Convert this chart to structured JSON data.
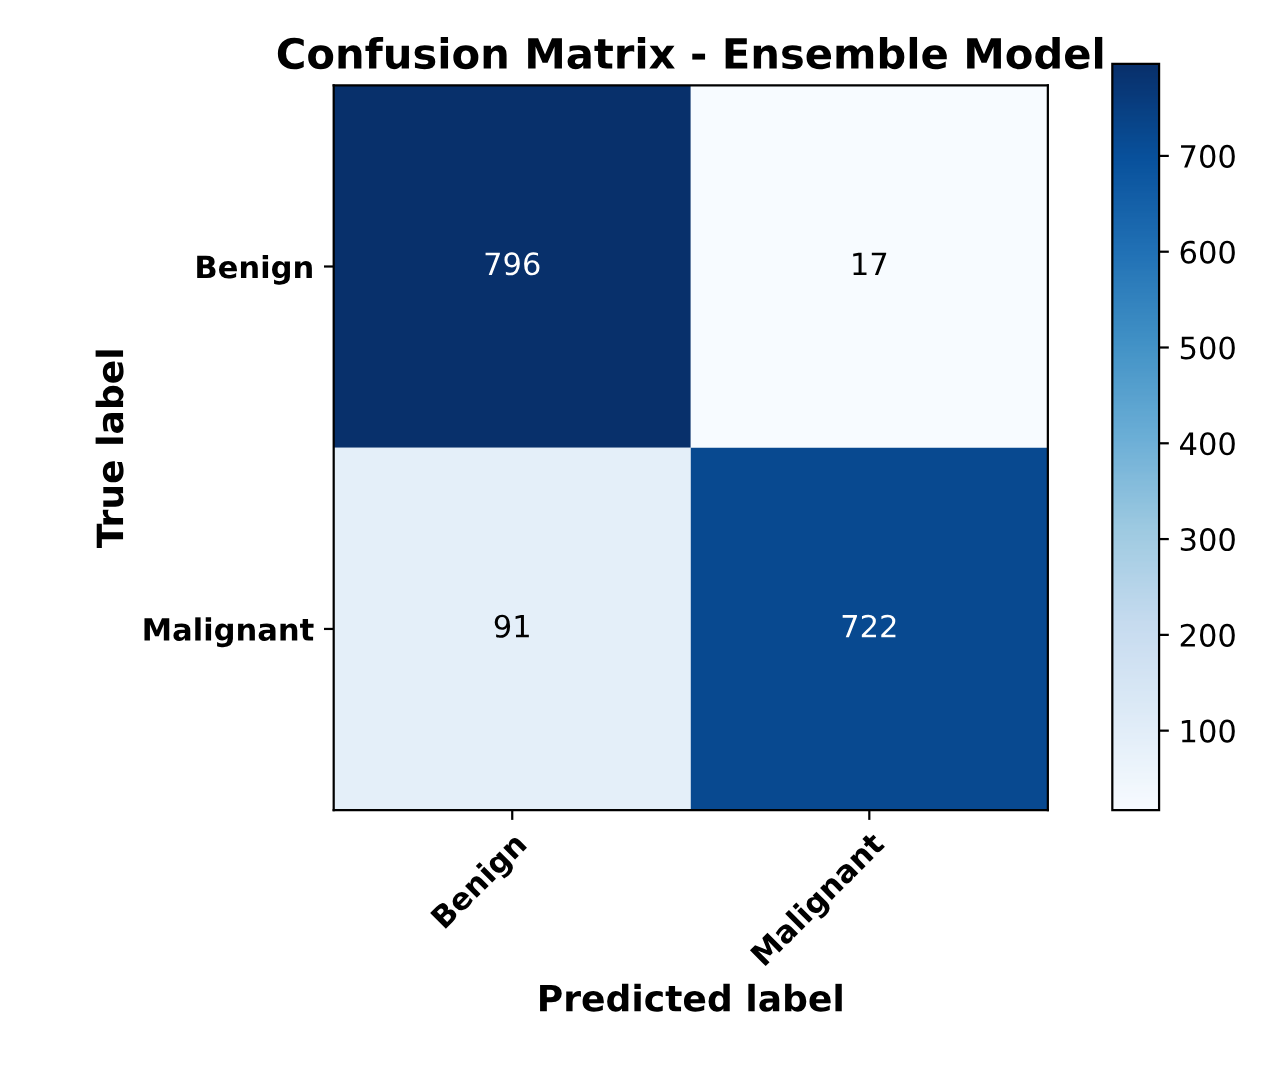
{
  "chart_data": {
    "type": "heatmap",
    "title": "Confusion Matrix - Ensemble Model",
    "xlabel": "Predicted label",
    "ylabel": "True label",
    "categories": [
      "Benign",
      "Malignant"
    ],
    "y_categories": [
      "Benign",
      "Malignant"
    ],
    "cells": [
      [
        796,
        17
      ],
      [
        91,
        722
      ]
    ],
    "data_labels": true,
    "clim": [
      17,
      796
    ],
    "cticks": [
      100,
      200,
      300,
      400,
      500,
      600,
      700
    ]
  }
}
